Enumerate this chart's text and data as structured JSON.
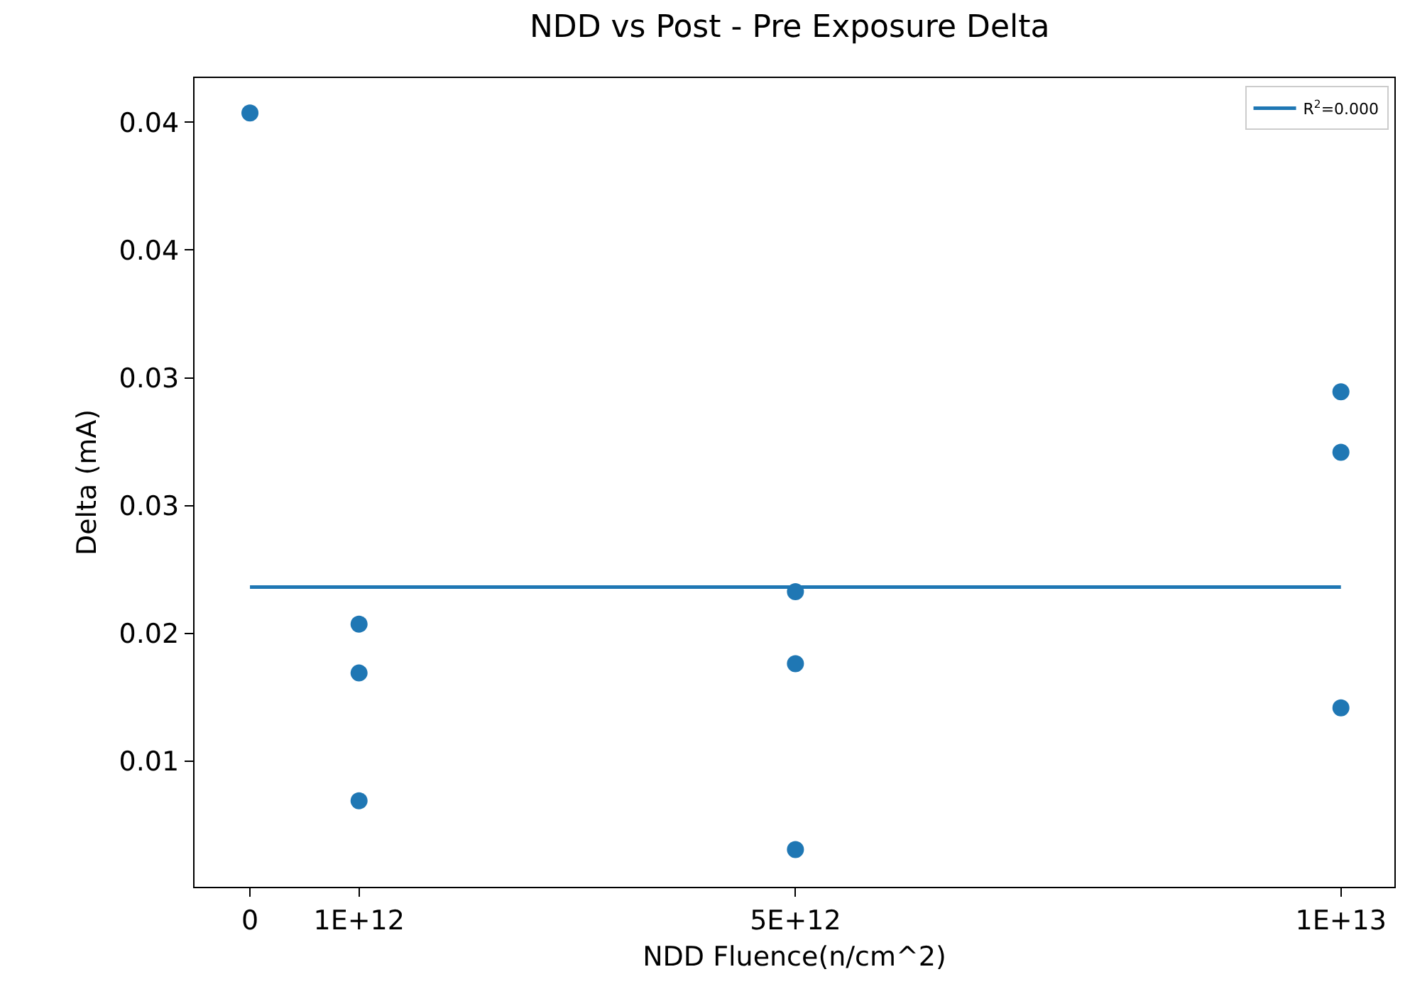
{
  "chart_data": {
    "type": "scatter",
    "title": "NDD vs Post - Pre Exposure Delta",
    "xlabel": "NDD Fluence(n/cm^2)",
    "ylabel": "Delta (mA)",
    "xlim": [
      -508000000000,
      10490000000000
    ],
    "xticks": [
      {
        "value": 0,
        "label": "0"
      },
      {
        "value": 1000000000000,
        "label": "1E+12"
      },
      {
        "value": 5000000000000,
        "label": "5E+12"
      },
      {
        "value": 10000000000000,
        "label": "1E+13"
      }
    ],
    "ylim": [
      0.0088,
      0.0436
    ],
    "yticks": [
      {
        "value": 0.0142,
        "label": "0.01"
      },
      {
        "value": 0.0197,
        "label": "0.02"
      },
      {
        "value": 0.0252,
        "label": "0.03"
      },
      {
        "value": 0.0307,
        "label": "0.03"
      },
      {
        "value": 0.0362,
        "label": "0.04"
      },
      {
        "value": 0.0417,
        "label": "0.04"
      }
    ],
    "grid": false,
    "legend": "top right",
    "series": [
      {
        "marker": "circle",
        "color": "#1f77b4",
        "x": [
          0,
          1000000000000,
          1000000000000,
          1000000000000,
          5000000000000,
          5000000000000,
          5000000000000,
          10000000000000,
          10000000000000,
          10000000000000
        ],
        "values": [
          0.0421,
          0.0201,
          0.018,
          0.0125,
          0.0215,
          0.0184,
          0.0104,
          0.0301,
          0.0275,
          0.0165
        ]
      },
      {
        "type": "line",
        "marker": "none",
        "name": "R$^{2}$=0.000",
        "color": "#1f77b4",
        "line_style": "solid",
        "x": [
          0,
          10000000000000
        ],
        "values": [
          0.0217,
          0.0217
        ]
      }
    ]
  }
}
